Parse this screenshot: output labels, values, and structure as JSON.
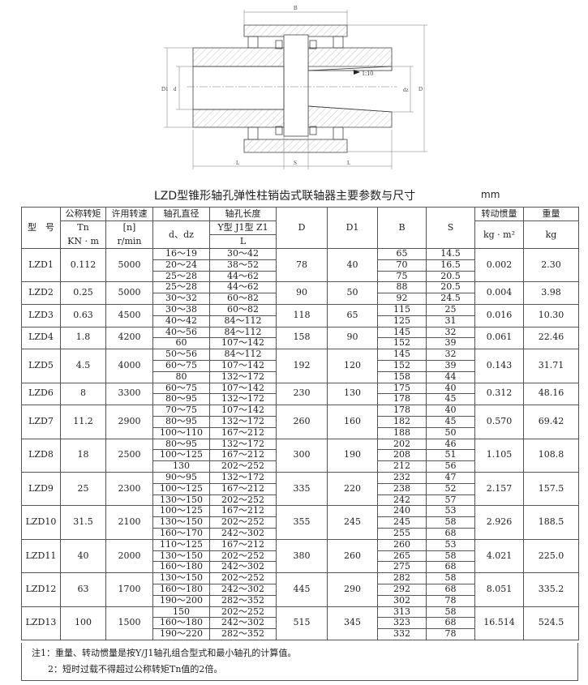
{
  "drawing": {
    "labels": {
      "B": "B",
      "D": "D",
      "D1": "D1",
      "d": "d",
      "dz": "dz",
      "L_left": "L",
      "S": "S",
      "L_right": "L",
      "taper": "1:10"
    }
  },
  "title": "LZD型锥形轴孔弹性柱销齿式联轴器主要参数与尺寸",
  "unit": "mm",
  "header": {
    "model": "型　号",
    "torque": [
      "公称转矩",
      "Tn",
      "KN · m"
    ],
    "speed": [
      "许用转速",
      "[n]",
      "r/min"
    ],
    "bore": [
      "轴孔直径",
      "d、dz"
    ],
    "bore_len": [
      "轴孔长度",
      "Y型 J1型 Z1",
      "L"
    ],
    "D": "D",
    "D1": "D1",
    "B": "B",
    "S": "S",
    "inertia": [
      "转动惯量",
      "kg · m²"
    ],
    "weight": [
      "重量",
      "kg"
    ]
  },
  "rows": [
    {
      "model": "LZD1",
      "tn": "0.112",
      "n": "5000",
      "d": [
        "16～19",
        "20～24",
        "25～28"
      ],
      "L": [
        "30～42",
        "38～52",
        "44～62"
      ],
      "D": "78",
      "D1": "40",
      "B": [
        "65",
        "70",
        "75"
      ],
      "S": [
        "14.5",
        "16.5",
        "20.5"
      ],
      "inertia": "0.002",
      "weight": "2.30"
    },
    {
      "model": "LZD2",
      "tn": "0.25",
      "n": "5000",
      "d": [
        "25～28",
        "30～32"
      ],
      "L": [
        "44～62",
        "60～82"
      ],
      "D": "90",
      "D1": "50",
      "B": [
        "88",
        "92"
      ],
      "S": [
        "20.5",
        "24.5"
      ],
      "inertia": "0.004",
      "weight": "3.98"
    },
    {
      "model": "LZD3",
      "tn": "0.63",
      "n": "4500",
      "d": [
        "30～38",
        "40～42"
      ],
      "L": [
        "60～82",
        "84～112"
      ],
      "D": "118",
      "D1": "65",
      "B": [
        "115",
        "125"
      ],
      "S": [
        "25",
        "31"
      ],
      "inertia": "0.016",
      "weight": "10.30"
    },
    {
      "model": "LZD4",
      "tn": "1.8",
      "n": "4200",
      "d": [
        "40～56",
        "60"
      ],
      "L": [
        "84～112",
        "107～142"
      ],
      "D": "158",
      "D1": "90",
      "B": [
        "145",
        "152"
      ],
      "S": [
        "32",
        "39"
      ],
      "inertia": "0.061",
      "weight": "22.46"
    },
    {
      "model": "LZD5",
      "tn": "4.5",
      "n": "4000",
      "d": [
        "50～56",
        "60～75",
        "80"
      ],
      "L": [
        "84～112",
        "107～142",
        "132～172"
      ],
      "D": "192",
      "D1": "120",
      "B": [
        "145",
        "152",
        "158"
      ],
      "S": [
        "32",
        "39",
        "44"
      ],
      "inertia": "0.143",
      "weight": "31.71"
    },
    {
      "model": "LZD6",
      "tn": "8",
      "n": "3300",
      "d": [
        "60～75",
        "80～95"
      ],
      "L": [
        "107～142",
        "132～172"
      ],
      "D": "230",
      "D1": "130",
      "B": [
        "175",
        "178"
      ],
      "S": [
        "40",
        "45"
      ],
      "inertia": "0.312",
      "weight": "48.16"
    },
    {
      "model": "LZD7",
      "tn": "11.2",
      "n": "2900",
      "d": [
        "70～75",
        "80～95",
        "100～110"
      ],
      "L": [
        "107～142",
        "132～172",
        "167～212"
      ],
      "D": "260",
      "D1": "160",
      "B": [
        "178",
        "182",
        "188"
      ],
      "S": [
        "40",
        "45",
        "50"
      ],
      "inertia": "0.570",
      "weight": "69.42"
    },
    {
      "model": "LZD8",
      "tn": "18",
      "n": "2500",
      "d": [
        "80～95",
        "100～125",
        "130"
      ],
      "L": [
        "132～172",
        "167～212",
        "202～252"
      ],
      "D": "300",
      "D1": "190",
      "B": [
        "202",
        "208",
        "212"
      ],
      "S": [
        "46",
        "51",
        "56"
      ],
      "inertia": "1.105",
      "weight": "108.8"
    },
    {
      "model": "LZD9",
      "tn": "25",
      "n": "2300",
      "d": [
        "90～95",
        "100～125",
        "130～150"
      ],
      "L": [
        "132～172",
        "167～212",
        "202～252"
      ],
      "D": "335",
      "D1": "220",
      "B": [
        "232",
        "238",
        "242"
      ],
      "S": [
        "47",
        "52",
        "57"
      ],
      "inertia": "2.157",
      "weight": "157.5"
    },
    {
      "model": "LZD10",
      "tn": "31.5",
      "n": "2100",
      "d": [
        "100～125",
        "130～150",
        "160～170"
      ],
      "L": [
        "167～212",
        "202～252",
        "242～302"
      ],
      "D": "355",
      "D1": "245",
      "B": [
        "240",
        "245",
        "255"
      ],
      "S": [
        "53",
        "58",
        "68"
      ],
      "inertia": "2.926",
      "weight": "188.5"
    },
    {
      "model": "LZD11",
      "tn": "40",
      "n": "2000",
      "d": [
        "110～125",
        "130～150",
        "160～180"
      ],
      "L": [
        "167～212",
        "202～252",
        "242～302"
      ],
      "D": "380",
      "D1": "260",
      "B": [
        "260",
        "265",
        "275"
      ],
      "S": [
        "53",
        "58",
        "68"
      ],
      "inertia": "4.021",
      "weight": "225.0"
    },
    {
      "model": "LZD12",
      "tn": "63",
      "n": "1700",
      "d": [
        "130～150",
        "160～180",
        "190～200"
      ],
      "L": [
        "202～252",
        "242～302",
        "282～352"
      ],
      "D": "445",
      "D1": "290",
      "B": [
        "282",
        "292",
        "302"
      ],
      "S": [
        "58",
        "68",
        "78"
      ],
      "inertia": "8.051",
      "weight": "335.2"
    },
    {
      "model": "LZD13",
      "tn": "100",
      "n": "1500",
      "d": [
        "150",
        "160～180",
        "190～220"
      ],
      "L": [
        "202～252",
        "242～302",
        "282～352"
      ],
      "D": "515",
      "D1": "345",
      "B": [
        "313",
        "323",
        "332"
      ],
      "S": [
        "58",
        "68",
        "78"
      ],
      "inertia": "16.514",
      "weight": "524.5"
    }
  ],
  "notes": [
    "注1：重量、转动惯量是按Y/J1轴孔组合型式和最小轴孔的计算值。",
    "2：短时过载不得超过公称转矩Tn值的2倍。"
  ]
}
